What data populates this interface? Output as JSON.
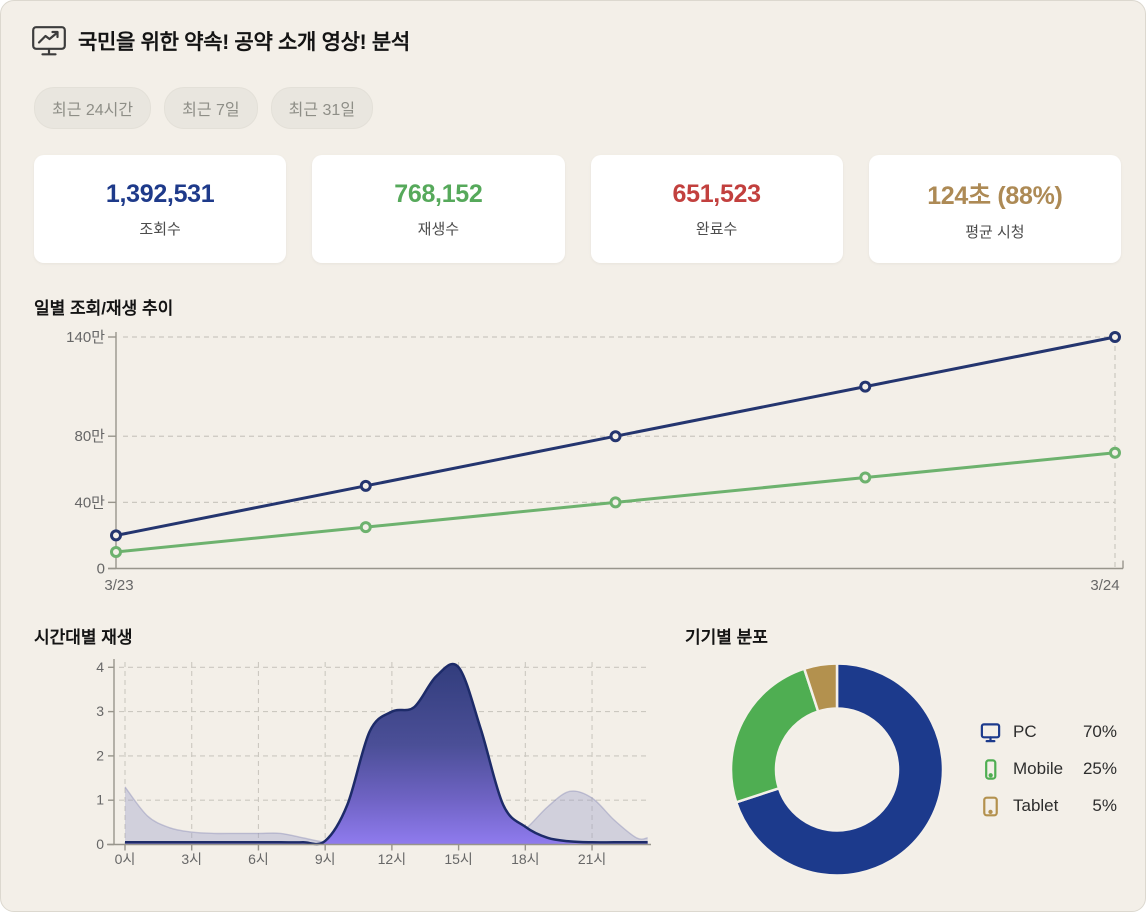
{
  "header": {
    "title": "국민을 위한 약속! 공약 소개 영상! 분석",
    "icon": "presentation-chart-icon"
  },
  "filters": [
    {
      "label": "최근 24시간"
    },
    {
      "label": "최근 7일"
    },
    {
      "label": "최근 31일"
    }
  ],
  "stats": [
    {
      "value": "1,392,531",
      "label": "조회수",
      "color": "#1e3a8a"
    },
    {
      "value": "768,152",
      "label": "재생수",
      "color": "#56a95b"
    },
    {
      "value": "651,523",
      "label": "완료수",
      "color": "#c2403e"
    },
    {
      "value": "124초 (88%)",
      "label": "평균 시청",
      "color": "#ad8a55"
    }
  ],
  "chart_data": [
    {
      "type": "line",
      "title": "일별 조회/재생 추이",
      "x_labels": [
        "3/23",
        "3/24"
      ],
      "ylim": [
        0,
        1400000
      ],
      "yticks": [
        {
          "value": 1400000,
          "label": "140만"
        },
        {
          "value": 800000,
          "label": "80만"
        },
        {
          "value": 400000,
          "label": "40만"
        },
        {
          "value": 0,
          "label": "0"
        }
      ],
      "grid": "horizontal-dashed",
      "series": [
        {
          "name": "조회수",
          "color": "#24356f",
          "values": [
            200000,
            500000,
            800000,
            1100000,
            1400000
          ]
        },
        {
          "name": "재생수",
          "color": "#6db26e",
          "values": [
            100000,
            250000,
            400000,
            550000,
            700000
          ]
        }
      ]
    },
    {
      "type": "area",
      "title": "시간대별 재생",
      "x_hours": [
        0,
        1,
        2,
        3,
        4,
        5,
        6,
        7,
        8,
        9,
        10,
        11,
        12,
        13,
        14,
        15,
        16,
        17,
        18,
        19,
        20,
        21,
        22,
        23
      ],
      "xtick_hours": [
        0,
        3,
        6,
        9,
        12,
        15,
        18,
        21
      ],
      "xtick_labels": [
        "0시",
        "3시",
        "6시",
        "9시",
        "12시",
        "15시",
        "18시",
        "21시"
      ],
      "ylim": [
        0,
        4
      ],
      "yticks": [
        0,
        1,
        2,
        3,
        4
      ],
      "grid": "both-dashed",
      "series": [
        {
          "name": "main-plays",
          "stroke": "#1d2b69",
          "fill_gradient": [
            "#323d7d",
            "#4b4f97",
            "#6f63c4",
            "#8f7bee"
          ],
          "values": [
            0.05,
            0.05,
            0.05,
            0.05,
            0.05,
            0.05,
            0.05,
            0.05,
            0.05,
            0.08,
            0.9,
            2.55,
            3.0,
            3.1,
            3.8,
            4.0,
            2.6,
            0.9,
            0.4,
            0.15,
            0.07,
            0.05,
            0.05,
            0.05
          ]
        },
        {
          "name": "secondary-plays",
          "fill": "rgba(156,159,199,0.38)",
          "stroke": "rgba(140,143,185,0.45)",
          "values": [
            1.3,
            0.65,
            0.38,
            0.28,
            0.25,
            0.25,
            0.25,
            0.25,
            0.15,
            0.05,
            0.02,
            0.02,
            0.02,
            0.02,
            0.02,
            0.02,
            0.02,
            0.1,
            0.35,
            0.85,
            1.2,
            1.05,
            0.55,
            0.15
          ]
        }
      ]
    },
    {
      "type": "donut",
      "title": "기기별 분포",
      "start_angle": "top-clockwise",
      "slices": [
        {
          "label": "PC",
          "value": 70,
          "pct_label": "70%",
          "color": "#1c3a8c",
          "icon": "monitor-icon"
        },
        {
          "label": "Mobile",
          "value": 25,
          "pct_label": "25%",
          "color": "#4fae52",
          "icon": "mobile-icon"
        },
        {
          "label": "Tablet",
          "value": 5,
          "pct_label": "5%",
          "color": "#b3914e",
          "icon": "tablet-icon"
        }
      ]
    }
  ]
}
